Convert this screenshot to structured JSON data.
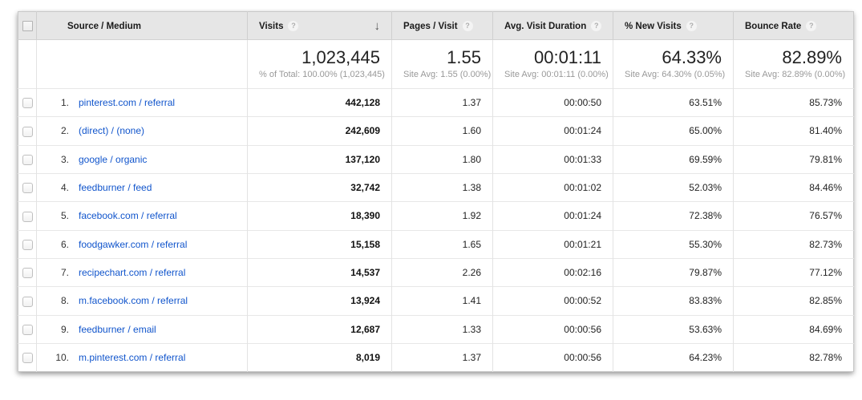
{
  "colors": {
    "link_color": "#1155cc",
    "header_bg": "#e6e6e6",
    "big_text": "#222222",
    "sub_text": "#999999"
  },
  "icons": {
    "help": "?",
    "sort_desc": "↓"
  },
  "table": {
    "columns": [
      {
        "label": "Source / Medium"
      },
      {
        "label": "Visits"
      },
      {
        "label": "Pages / Visit"
      },
      {
        "label": "Avg. Visit Duration"
      },
      {
        "label": "% New Visits"
      },
      {
        "label": "Bounce Rate"
      }
    ],
    "summary": {
      "visits": {
        "value": "1,023,445",
        "sub": "% of Total: 100.00% (1,023,445)"
      },
      "pages_per_visit": {
        "value": "1.55",
        "sub": "Site Avg: 1.55 (0.00%)"
      },
      "avg_visit_duration": {
        "value": "00:01:11",
        "sub": "Site Avg: 00:01:11 (0.00%)"
      },
      "pct_new_visits": {
        "value": "64.33%",
        "sub": "Site Avg: 64.30% (0.05%)"
      },
      "bounce_rate": {
        "value": "82.89%",
        "sub": "Site Avg: 82.89% (0.00%)"
      }
    },
    "rows": [
      {
        "rank": "1.",
        "source_medium": "pinterest.com / referral",
        "visits": "442,128",
        "pages_per_visit": "1.37",
        "avg_visit_duration": "00:00:50",
        "pct_new_visits": "63.51%",
        "bounce_rate": "85.73%"
      },
      {
        "rank": "2.",
        "source_medium": "(direct) / (none)",
        "visits": "242,609",
        "pages_per_visit": "1.60",
        "avg_visit_duration": "00:01:24",
        "pct_new_visits": "65.00%",
        "bounce_rate": "81.40%"
      },
      {
        "rank": "3.",
        "source_medium": "google / organic",
        "visits": "137,120",
        "pages_per_visit": "1.80",
        "avg_visit_duration": "00:01:33",
        "pct_new_visits": "69.59%",
        "bounce_rate": "79.81%"
      },
      {
        "rank": "4.",
        "source_medium": "feedburner / feed",
        "visits": "32,742",
        "pages_per_visit": "1.38",
        "avg_visit_duration": "00:01:02",
        "pct_new_visits": "52.03%",
        "bounce_rate": "84.46%"
      },
      {
        "rank": "5.",
        "source_medium": "facebook.com / referral",
        "visits": "18,390",
        "pages_per_visit": "1.92",
        "avg_visit_duration": "00:01:24",
        "pct_new_visits": "72.38%",
        "bounce_rate": "76.57%"
      },
      {
        "rank": "6.",
        "source_medium": "foodgawker.com / referral",
        "visits": "15,158",
        "pages_per_visit": "1.65",
        "avg_visit_duration": "00:01:21",
        "pct_new_visits": "55.30%",
        "bounce_rate": "82.73%"
      },
      {
        "rank": "7.",
        "source_medium": "recipechart.com / referral",
        "visits": "14,537",
        "pages_per_visit": "2.26",
        "avg_visit_duration": "00:02:16",
        "pct_new_visits": "79.87%",
        "bounce_rate": "77.12%"
      },
      {
        "rank": "8.",
        "source_medium": "m.facebook.com / referral",
        "visits": "13,924",
        "pages_per_visit": "1.41",
        "avg_visit_duration": "00:00:52",
        "pct_new_visits": "83.83%",
        "bounce_rate": "82.85%"
      },
      {
        "rank": "9.",
        "source_medium": "feedburner / email",
        "visits": "12,687",
        "pages_per_visit": "1.33",
        "avg_visit_duration": "00:00:56",
        "pct_new_visits": "53.63%",
        "bounce_rate": "84.69%"
      },
      {
        "rank": "10.",
        "source_medium": "m.pinterest.com / referral",
        "visits": "8,019",
        "pages_per_visit": "1.37",
        "avg_visit_duration": "00:00:56",
        "pct_new_visits": "64.23%",
        "bounce_rate": "82.78%"
      }
    ]
  }
}
